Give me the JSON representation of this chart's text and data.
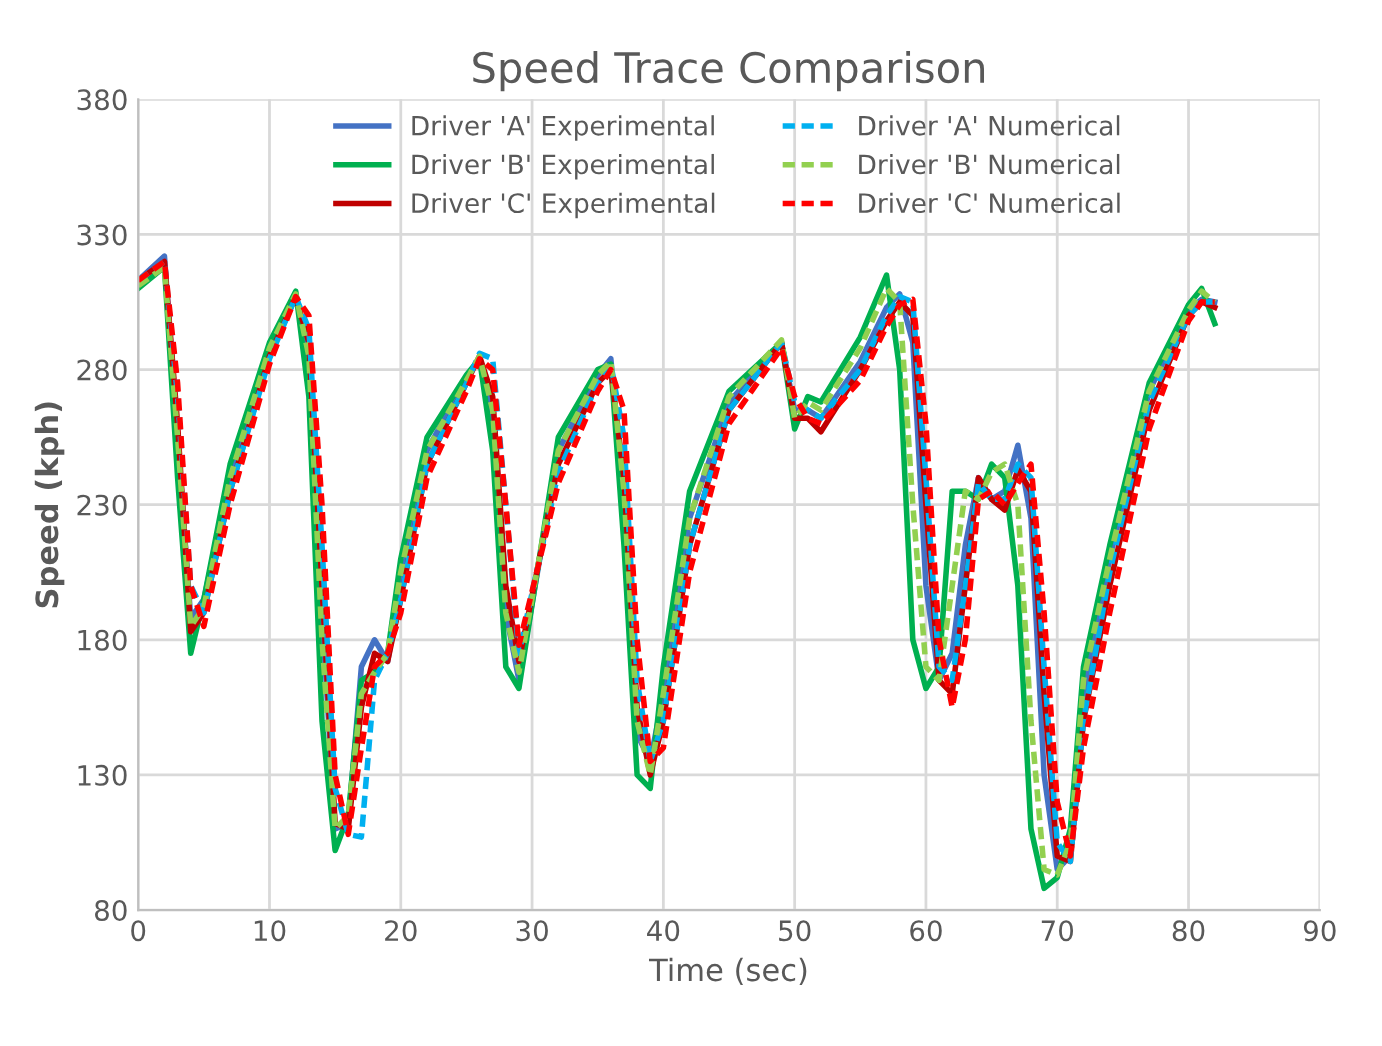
{
  "chart_data": {
    "type": "line",
    "title": "Speed Trace Comparison",
    "xlabel": "Time (sec)",
    "ylabel": "Speed (kph)",
    "x": [
      0,
      2,
      3,
      4,
      5,
      7,
      10,
      12,
      13,
      14,
      15,
      16,
      17,
      18,
      19,
      20,
      22,
      25,
      26,
      27,
      28,
      29,
      32,
      35,
      36,
      37,
      38,
      39,
      40,
      42,
      45,
      49,
      50,
      51,
      52,
      55,
      57,
      58,
      59,
      60,
      61,
      62,
      63,
      64,
      65,
      66,
      67,
      68,
      69,
      70,
      71,
      72,
      74,
      77,
      80,
      81,
      82
    ],
    "xlim": [
      0,
      90
    ],
    "xticks": [
      0,
      10,
      20,
      30,
      40,
      50,
      60,
      70,
      80,
      90
    ],
    "ylim": [
      80,
      380
    ],
    "yticks": [
      80,
      130,
      180,
      230,
      280,
      330,
      380
    ],
    "grid": true,
    "legend": "top",
    "marker": "none",
    "series": [
      {
        "name": "Driver 'A' Experimental",
        "color": "#4472c4",
        "line_style": "solid",
        "values": [
          313,
          322,
          255,
          188,
          195,
          240,
          287,
          308,
          285,
          190,
          110,
          112,
          170,
          180,
          172,
          200,
          250,
          277,
          284,
          260,
          190,
          165,
          250,
          278,
          284,
          230,
          145,
          135,
          160,
          225,
          268,
          290,
          265,
          265,
          262,
          283,
          303,
          308,
          290,
          200,
          165,
          175,
          215,
          240,
          232,
          235,
          252,
          225,
          130,
          95,
          100,
          160,
          210,
          272,
          302,
          306,
          305
        ]
      },
      {
        "name": "Driver 'B' Experimental",
        "color": "#00b050",
        "line_style": "solid",
        "values": [
          310,
          318,
          240,
          175,
          195,
          245,
          290,
          309,
          270,
          150,
          102,
          115,
          165,
          168,
          175,
          210,
          255,
          278,
          284,
          250,
          170,
          162,
          255,
          280,
          282,
          215,
          130,
          125,
          170,
          235,
          272,
          290,
          258,
          270,
          268,
          292,
          315,
          280,
          180,
          162,
          170,
          235,
          235,
          232,
          245,
          240,
          200,
          110,
          88,
          92,
          110,
          170,
          215,
          275,
          304,
          310,
          297
        ]
      },
      {
        "name": "Driver 'C' Experimental",
        "color": "#c00000",
        "line_style": "solid",
        "values": [
          313,
          320,
          260,
          183,
          190,
          235,
          285,
          307,
          290,
          200,
          112,
          110,
          155,
          175,
          172,
          195,
          245,
          275,
          285,
          270,
          200,
          172,
          245,
          275,
          280,
          240,
          155,
          130,
          150,
          215,
          265,
          290,
          262,
          262,
          257,
          280,
          298,
          305,
          300,
          230,
          165,
          160,
          200,
          240,
          232,
          228,
          243,
          235,
          160,
          100,
          98,
          150,
          200,
          265,
          300,
          305,
          303
        ]
      },
      {
        "name": "Driver 'A' Numerical",
        "color": "#00b0f0",
        "line_style": "dashed",
        "values": [
          313,
          320,
          270,
          200,
          190,
          235,
          284,
          307,
          295,
          215,
          125,
          108,
          107,
          165,
          175,
          195,
          245,
          275,
          286,
          284,
          230,
          175,
          242,
          275,
          282,
          255,
          165,
          135,
          150,
          215,
          265,
          290,
          268,
          265,
          262,
          280,
          300,
          307,
          305,
          240,
          170,
          165,
          200,
          238,
          232,
          232,
          245,
          240,
          170,
          105,
          98,
          150,
          205,
          268,
          300,
          305,
          305
        ]
      },
      {
        "name": "Driver 'B' Numerical",
        "color": "#92d050",
        "line_style": "dashed",
        "values": [
          311,
          318,
          255,
          185,
          192,
          240,
          288,
          308,
          285,
          180,
          110,
          115,
          160,
          168,
          175,
          205,
          250,
          276,
          285,
          265,
          190,
          168,
          250,
          278,
          283,
          235,
          150,
          130,
          160,
          225,
          270,
          291,
          262,
          268,
          265,
          288,
          310,
          305,
          230,
          170,
          165,
          200,
          235,
          232,
          242,
          245,
          230,
          150,
          95,
          93,
          105,
          165,
          210,
          272,
          302,
          309,
          305
        ]
      },
      {
        "name": "Driver 'C' Numerical",
        "color": "#ff0000",
        "line_style": "dashed",
        "values": [
          313,
          320,
          275,
          200,
          185,
          230,
          282,
          307,
          300,
          230,
          130,
          108,
          140,
          170,
          175,
          190,
          240,
          272,
          284,
          280,
          230,
          178,
          238,
          272,
          280,
          265,
          180,
          135,
          140,
          205,
          260,
          288,
          270,
          262,
          260,
          276,
          296,
          304,
          306,
          260,
          180,
          155,
          180,
          232,
          235,
          230,
          238,
          245,
          190,
          120,
          100,
          140,
          190,
          258,
          298,
          305,
          305
        ]
      }
    ]
  }
}
